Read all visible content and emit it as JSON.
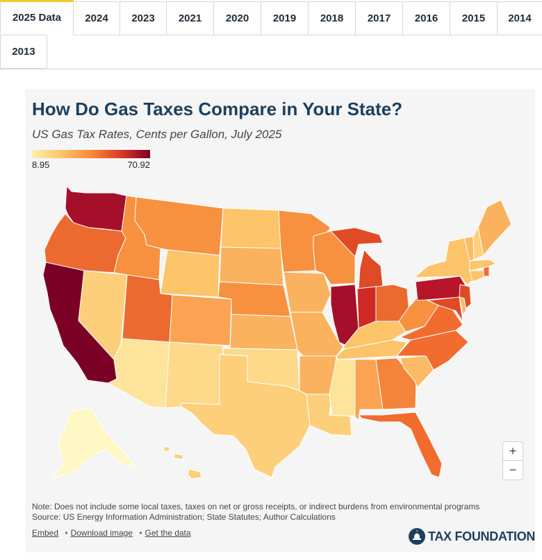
{
  "tabs": [
    {
      "label": "2025 Data",
      "active": true
    },
    {
      "label": "2024"
    },
    {
      "label": "2023"
    },
    {
      "label": "2021"
    },
    {
      "label": "2020"
    },
    {
      "label": "2019"
    },
    {
      "label": "2018"
    },
    {
      "label": "2017"
    },
    {
      "label": "2016"
    },
    {
      "label": "2015"
    },
    {
      "label": "2014"
    },
    {
      "label": "2013"
    }
  ],
  "map": {
    "title": "How Do Gas Taxes Compare in Your State?",
    "subtitle": "US Gas Tax Rates, Cents per Gallon, July 2025",
    "legend": {
      "min": "8.95",
      "max": "70.92",
      "colors": [
        "#ffefae",
        "#fdc46a",
        "#f7893a",
        "#de3a25",
        "#7a0025"
      ]
    },
    "state_colors": {
      "WA": "#a50f2a",
      "OR": "#ec6a30",
      "CA": "#7a0025",
      "NV": "#fdcf7a",
      "ID": "#f7913f",
      "MT": "#f7913f",
      "WY": "#fdc46a",
      "UT": "#ec6a30",
      "AZ": "#fee39a",
      "CO": "#fba352",
      "NM": "#fed98a",
      "ND": "#fdc46a",
      "SD": "#fbb25f",
      "NE": "#f7913f",
      "KS": "#fbb25f",
      "OK": "#fed98a",
      "TX": "#fdcf7a",
      "MN": "#f7913f",
      "IA": "#fbb25f",
      "MO": "#fbb25f",
      "AR": "#fbb25f",
      "LA": "#fdcf7a",
      "WI": "#f7913f",
      "IL": "#a50f2a",
      "MI": "#e04a27",
      "IN": "#cf2a26",
      "OH": "#ec6a30",
      "KY": "#fdc46a",
      "TN": "#fdc46a",
      "MS": "#fee39a",
      "AL": "#fba352",
      "GA": "#f48439",
      "FL": "#f26b2f",
      "SC": "#fdbb66",
      "NC": "#f26b2f",
      "VA": "#f26b2f",
      "WV": "#f7913f",
      "PA": "#b8152a",
      "NY": "#fdc46a",
      "NJ": "#e04a27",
      "MD": "#e04a27",
      "DE": "#fdbb66",
      "CT": "#fdc46a",
      "RI": "#f26b2f",
      "MA": "#fdc46a",
      "VT": "#fdbb66",
      "NH": "#fdcf7a",
      "ME": "#fbb25f",
      "AK": "#fff7c4",
      "HI": "#fdcf7a"
    },
    "note": "Note: Does not include some local taxes, taxes on net or gross receipts, or indirect burdens from environmental programs",
    "source": "Source: US Energy Information Administration; State Statutes; Author Calculations",
    "links": {
      "embed": "Embed",
      "download": "Download image",
      "data": "Get the data"
    },
    "logo_text": "TAX FOUNDATION",
    "zoom": {
      "in": "+",
      "out": "−"
    }
  }
}
